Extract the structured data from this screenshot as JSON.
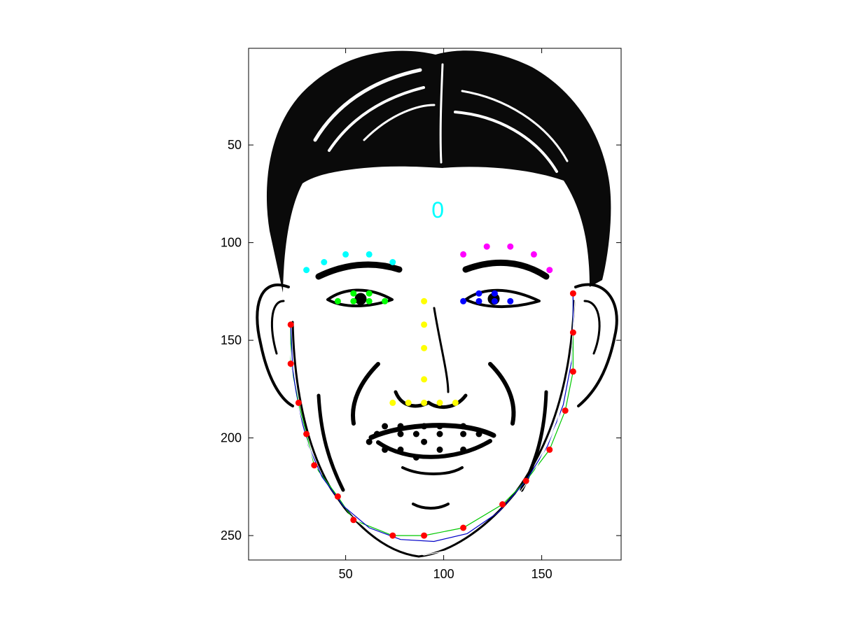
{
  "chart_data": {
    "type": "scatter",
    "title": "",
    "xlabel": "",
    "ylabel": "",
    "xlim": [
      0.5,
      190.5
    ],
    "ylim": [
      0.5,
      262.5
    ],
    "y_axis_reversed": true,
    "xticks": [
      50,
      100,
      150
    ],
    "yticks": [
      50,
      100,
      150,
      200,
      250
    ],
    "grid": false,
    "legend": "none",
    "background": "line-art face illustration",
    "annotation": {
      "text": "0",
      "x": 97,
      "y": 83,
      "color": "#00ffff"
    },
    "series": [
      {
        "color": "#00ffff",
        "shape": "dot",
        "points": [
          [
            30,
            114
          ],
          [
            39,
            110
          ],
          [
            50,
            106
          ],
          [
            62,
            106
          ],
          [
            74,
            110
          ]
        ]
      },
      {
        "color": "#ff00ff",
        "shape": "dot",
        "points": [
          [
            110,
            106
          ],
          [
            122,
            102
          ],
          [
            134,
            102
          ],
          [
            146,
            106
          ],
          [
            154,
            114
          ]
        ]
      },
      {
        "color": "#00ff00",
        "shape": "dot",
        "points": [
          [
            46,
            130
          ],
          [
            54,
            126
          ],
          [
            54,
            130
          ],
          [
            62,
            126
          ],
          [
            62,
            130
          ],
          [
            70,
            130
          ]
        ]
      },
      {
        "color": "#0000ff",
        "shape": "dot",
        "points": [
          [
            110,
            130
          ],
          [
            118,
            126
          ],
          [
            118,
            130
          ],
          [
            126,
            126
          ],
          [
            126,
            130
          ],
          [
            134,
            130
          ]
        ]
      },
      {
        "color": "#ffff00",
        "shape": "dot",
        "points": [
          [
            90,
            130
          ],
          [
            90,
            142
          ],
          [
            90,
            154
          ],
          [
            90,
            170
          ],
          [
            74,
            182
          ],
          [
            82,
            182
          ],
          [
            90,
            182
          ],
          [
            98,
            182
          ],
          [
            106,
            182
          ]
        ]
      },
      {
        "color": "#000000",
        "shape": "dot",
        "points": [
          [
            70,
            194
          ],
          [
            78,
            194
          ],
          [
            90,
            194
          ],
          [
            98,
            194
          ],
          [
            110,
            194
          ],
          [
            66,
            198
          ],
          [
            78,
            198
          ],
          [
            86,
            198
          ],
          [
            98,
            198
          ],
          [
            110,
            198
          ],
          [
            118,
            198
          ],
          [
            62,
            202
          ],
          [
            90,
            202
          ],
          [
            70,
            206
          ],
          [
            78,
            206
          ],
          [
            98,
            206
          ],
          [
            110,
            206
          ],
          [
            86,
            210
          ]
        ]
      },
      {
        "color": "#ff0000",
        "shape": "dot",
        "points": [
          [
            22,
            142
          ],
          [
            22,
            162
          ],
          [
            26,
            182
          ],
          [
            30,
            198
          ],
          [
            34,
            214
          ],
          [
            46,
            230
          ],
          [
            54,
            242
          ],
          [
            74,
            250
          ],
          [
            90,
            250
          ],
          [
            110,
            246
          ],
          [
            130,
            234
          ],
          [
            142,
            222
          ],
          [
            154,
            206
          ],
          [
            162,
            186
          ],
          [
            166,
            166
          ],
          [
            166,
            146
          ],
          [
            166,
            126
          ]
        ]
      }
    ],
    "curves": [
      {
        "color": "#00c800",
        "points": [
          [
            22,
            142
          ],
          [
            22,
            162
          ],
          [
            26,
            182
          ],
          [
            30,
            198
          ],
          [
            34,
            214
          ],
          [
            46,
            230
          ],
          [
            54,
            242
          ],
          [
            74,
            250
          ],
          [
            90,
            250
          ],
          [
            110,
            246
          ],
          [
            130,
            234
          ],
          [
            142,
            222
          ],
          [
            154,
            206
          ],
          [
            162,
            186
          ],
          [
            166,
            166
          ],
          [
            166,
            146
          ],
          [
            166,
            126
          ]
        ]
      },
      {
        "color": "#0000c8",
        "points": [
          [
            22,
            142
          ],
          [
            23,
            165
          ],
          [
            26,
            185
          ],
          [
            31,
            204
          ],
          [
            38,
            220
          ],
          [
            49,
            235
          ],
          [
            62,
            246
          ],
          [
            78,
            252
          ],
          [
            95,
            253
          ],
          [
            112,
            249
          ],
          [
            128,
            238
          ],
          [
            142,
            222
          ],
          [
            153,
            204
          ],
          [
            161,
            183
          ],
          [
            165,
            162
          ],
          [
            166,
            142
          ],
          [
            166,
            126
          ]
        ]
      },
      {
        "color": "#ffffff",
        "points": [
          [
            21,
            145
          ],
          [
            23,
            170
          ],
          [
            28,
            195
          ],
          [
            36,
            218
          ],
          [
            50,
            238
          ],
          [
            68,
            252
          ],
          [
            90,
            260
          ],
          [
            110,
            256
          ],
          [
            130,
            240
          ],
          [
            146,
            218
          ],
          [
            158,
            192
          ],
          [
            165,
            160
          ],
          [
            167,
            128
          ]
        ]
      }
    ]
  }
}
